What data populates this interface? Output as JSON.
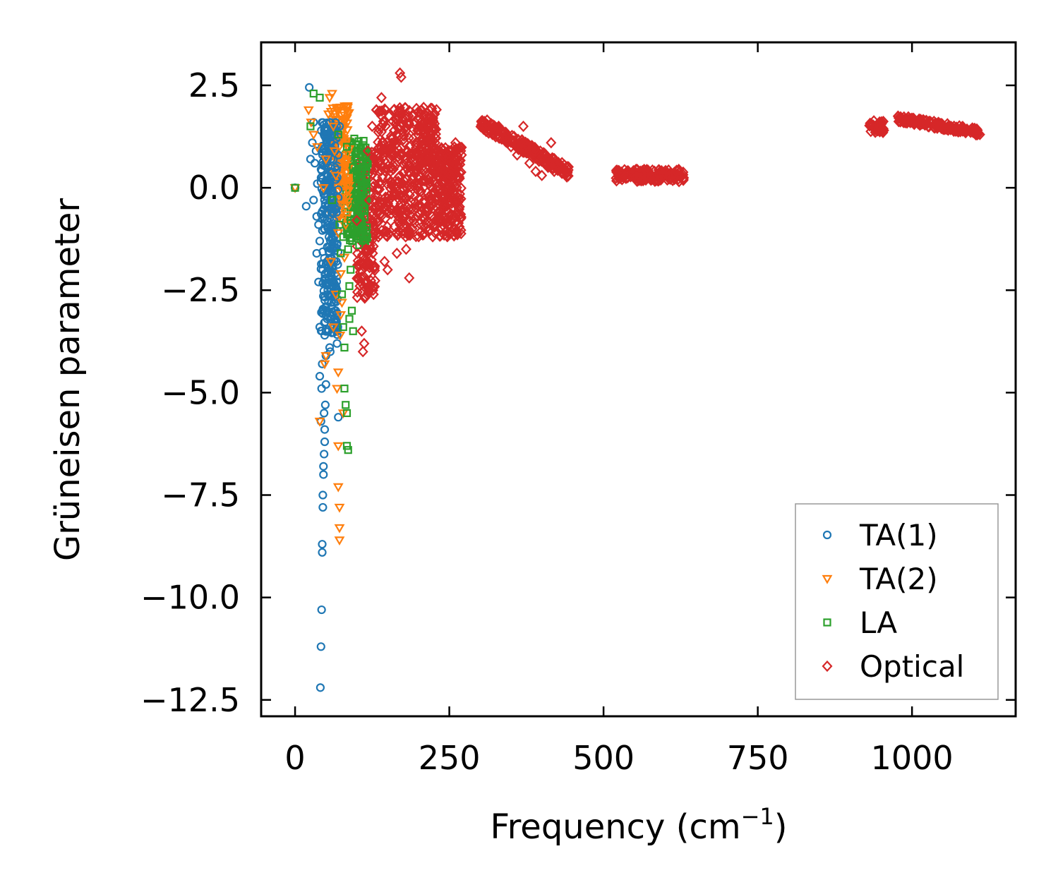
{
  "chart_data": {
    "type": "scatter",
    "title": "",
    "xlabel": "Frequency (cm",
    "xlabel_sup": "−1",
    "xlabel_suffix": ")",
    "ylabel": "Grüneisen parameter",
    "xlim": [
      -55,
      1168
    ],
    "ylim": [
      -12.9,
      3.55
    ],
    "xticks": [
      0,
      250,
      500,
      750,
      1000
    ],
    "xtick_labels": [
      "0",
      "250",
      "500",
      "750",
      "1000"
    ],
    "yticks": [
      2.5,
      0.0,
      -2.5,
      -5.0,
      -7.5,
      -10.0,
      -12.5
    ],
    "ytick_labels": [
      "2.5",
      "0.0",
      "−2.5",
      "−5.0",
      "−7.5",
      "−10.0",
      "−12.5"
    ],
    "grid": false,
    "legend_position": "lower-right",
    "series": [
      {
        "name": "TA(1)",
        "marker": "circle",
        "color": "#1f77b4",
        "points": [
          [
            0,
            0.0
          ],
          [
            18,
            -0.45
          ],
          [
            23,
            2.45
          ],
          [
            30,
            1.6
          ],
          [
            32,
            0.6
          ],
          [
            35,
            -0.7
          ],
          [
            35,
            -1.6
          ],
          [
            38,
            -2.3
          ],
          [
            40,
            -3.4
          ],
          [
            40,
            -4.6
          ],
          [
            41,
            -12.2
          ],
          [
            42,
            -11.2
          ],
          [
            43,
            -10.3
          ],
          [
            44,
            -8.9
          ],
          [
            44,
            -8.7
          ],
          [
            45,
            -7.5
          ],
          [
            45,
            -7.8
          ],
          [
            46,
            -7.0
          ],
          [
            46,
            -6.8
          ],
          [
            47,
            -6.5
          ],
          [
            48,
            -6.2
          ],
          [
            48,
            -5.9
          ],
          [
            49,
            -5.3
          ],
          [
            50,
            -4.8
          ],
          [
            50,
            -4.1
          ],
          [
            52,
            -3.2
          ],
          [
            53,
            -2.5
          ],
          [
            55,
            -1.2
          ],
          [
            57,
            0.4
          ],
          [
            58,
            1.1
          ],
          [
            60,
            1.4
          ],
          [
            62,
            0.3
          ],
          [
            65,
            -0.5
          ],
          [
            67,
            -1.8
          ],
          [
            70,
            0.8
          ],
          [
            72,
            1.5
          ],
          [
            45,
            -2.0
          ],
          [
            47,
            -1.0
          ],
          [
            49,
            -0.2
          ],
          [
            51,
            0.6
          ],
          [
            53,
            -3.5
          ],
          [
            55,
            -2.2
          ],
          [
            57,
            -4.0
          ],
          [
            59,
            -2.8
          ],
          [
            61,
            -1.5
          ],
          [
            63,
            -0.8
          ],
          [
            66,
            -3.0
          ],
          [
            68,
            -3.8
          ],
          [
            70,
            -5.6
          ],
          [
            44,
            -4.3
          ],
          [
            42,
            -5.7
          ],
          [
            46,
            -3.0
          ],
          [
            48,
            -3.6
          ],
          [
            52,
            -1.8
          ],
          [
            54,
            -0.4
          ],
          [
            56,
            1.6
          ],
          [
            58,
            -2.6
          ],
          [
            60,
            -1.0
          ],
          [
            64,
            0.9
          ],
          [
            66,
            0.2
          ],
          [
            68,
            -1.4
          ],
          [
            40,
            -1.3
          ],
          [
            38,
            -0.9
          ],
          [
            36,
            0.1
          ],
          [
            34,
            0.9
          ],
          [
            28,
            1.1
          ],
          [
            25,
            0.7
          ],
          [
            30,
            -0.3
          ],
          [
            43,
            -4.9
          ],
          [
            47,
            -5.5
          ],
          [
            50,
            -2.9
          ],
          [
            56,
            -3.9
          ],
          [
            62,
            -2.4
          ],
          [
            67,
            -0.6
          ]
        ]
      },
      {
        "name": "TA(2)",
        "marker": "triangle-down",
        "color": "#ff7f0e",
        "points": [
          [
            0,
            0.0
          ],
          [
            22,
            1.9
          ],
          [
            26,
            1.6
          ],
          [
            30,
            1.3
          ],
          [
            36,
            1.0
          ],
          [
            40,
            -5.7
          ],
          [
            46,
            0.0
          ],
          [
            50,
            0.7
          ],
          [
            54,
            1.8
          ],
          [
            56,
            2.2
          ],
          [
            60,
            2.3
          ],
          [
            62,
            1.5
          ],
          [
            64,
            0.9
          ],
          [
            66,
            0.3
          ],
          [
            68,
            1.9
          ],
          [
            70,
            -1.1
          ],
          [
            70,
            -4.5
          ],
          [
            70,
            -6.3
          ],
          [
            70,
            -7.3
          ],
          [
            72,
            -7.8
          ],
          [
            72,
            -8.3
          ],
          [
            72,
            -8.6
          ],
          [
            74,
            -2.1
          ],
          [
            74,
            -3.1
          ],
          [
            76,
            -2.8
          ],
          [
            78,
            -5.5
          ],
          [
            80,
            -1.7
          ],
          [
            82,
            -0.9
          ],
          [
            84,
            1.7
          ],
          [
            85,
            2.0
          ],
          [
            48,
            -4.3
          ],
          [
            50,
            -4.1
          ],
          [
            58,
            -1.8
          ],
          [
            66,
            -2.6
          ],
          [
            76,
            -0.4
          ],
          [
            78,
            1.2
          ],
          [
            80,
            0.5
          ],
          [
            62,
            -3.4
          ],
          [
            68,
            -4.9
          ],
          [
            73,
            -3.6
          ]
        ]
      },
      {
        "name": "LA",
        "marker": "square",
        "color": "#2ca02c",
        "points": [
          [
            0,
            0.0
          ],
          [
            25,
            1.5
          ],
          [
            30,
            2.3
          ],
          [
            40,
            2.2
          ],
          [
            60,
            -0.3
          ],
          [
            70,
            1.3
          ],
          [
            72,
            -0.9
          ],
          [
            74,
            -1.6
          ],
          [
            76,
            -2.6
          ],
          [
            78,
            -3.4
          ],
          [
            80,
            -3.9
          ],
          [
            82,
            -5.3
          ],
          [
            84,
            -5.5
          ],
          [
            84,
            -6.3
          ],
          [
            86,
            -6.4
          ],
          [
            88,
            -2.4
          ],
          [
            90,
            -2.0
          ],
          [
            92,
            -3.0
          ],
          [
            94,
            -3.5
          ],
          [
            96,
            -1.1
          ],
          [
            98,
            -0.4
          ],
          [
            100,
            0.3
          ],
          [
            102,
            0.9
          ],
          [
            104,
            0.2
          ],
          [
            106,
            -0.6
          ],
          [
            108,
            -1.0
          ],
          [
            110,
            0.6
          ],
          [
            112,
            -0.2
          ],
          [
            114,
            0.8
          ],
          [
            116,
            0.1
          ],
          [
            80,
            -4.9
          ],
          [
            86,
            -1.5
          ],
          [
            90,
            -0.8
          ],
          [
            94,
            0.5
          ],
          [
            96,
            1.2
          ],
          [
            100,
            -0.2
          ],
          [
            104,
            -1.4
          ],
          [
            84,
            1.0
          ],
          [
            78,
            -1.2
          ],
          [
            88,
            -3.2
          ]
        ]
      },
      {
        "name": "Optical",
        "marker": "diamond",
        "color": "#d62728",
        "points": [
          [
            100,
            -0.8
          ],
          [
            105,
            -2.4
          ],
          [
            108,
            -3.5
          ],
          [
            110,
            -4.0
          ],
          [
            112,
            -3.8
          ],
          [
            115,
            -1.5
          ],
          [
            118,
            0.9
          ],
          [
            120,
            -0.3
          ],
          [
            125,
            1.5
          ],
          [
            130,
            0.7
          ],
          [
            135,
            -1.2
          ],
          [
            140,
            2.2
          ],
          [
            145,
            -1.8
          ],
          [
            150,
            -2.0
          ],
          [
            155,
            0.4
          ],
          [
            160,
            1.9
          ],
          [
            165,
            -1.6
          ],
          [
            170,
            2.8
          ],
          [
            172,
            2.7
          ],
          [
            175,
            0.1
          ],
          [
            180,
            -1.5
          ],
          [
            185,
            -2.2
          ],
          [
            190,
            -1.0
          ],
          [
            195,
            1.6
          ],
          [
            200,
            0.3
          ],
          [
            205,
            1.9
          ],
          [
            210,
            -1.1
          ],
          [
            215,
            -0.5
          ],
          [
            220,
            0.9
          ],
          [
            225,
            1.5
          ],
          [
            230,
            -0.2
          ],
          [
            240,
            0.3
          ],
          [
            250,
            0.9
          ],
          [
            260,
            1.1
          ],
          [
            270,
            0.8
          ],
          [
            310,
            1.5
          ],
          [
            320,
            1.3
          ],
          [
            330,
            1.5
          ],
          [
            340,
            1.2
          ],
          [
            350,
            1.0
          ],
          [
            360,
            0.8
          ],
          [
            370,
            1.5
          ],
          [
            380,
            0.6
          ],
          [
            390,
            0.4
          ],
          [
            400,
            0.3
          ],
          [
            410,
            0.5
          ],
          [
            415,
            1.1
          ],
          [
            420,
            0.4
          ],
          [
            430,
            0.5
          ],
          [
            440,
            0.4
          ],
          [
            530,
            0.2
          ],
          [
            550,
            0.3
          ],
          [
            570,
            0.4
          ],
          [
            590,
            0.3
          ],
          [
            610,
            0.3
          ],
          [
            625,
            0.3
          ],
          [
            935,
            1.5
          ],
          [
            945,
            1.45
          ],
          [
            980,
            1.7
          ],
          [
            1000,
            1.6
          ],
          [
            1020,
            1.55
          ],
          [
            1040,
            1.5
          ],
          [
            1060,
            1.5
          ],
          [
            1080,
            1.45
          ],
          [
            1100,
            1.35
          ],
          [
            1110,
            1.3
          ]
        ]
      }
    ]
  }
}
